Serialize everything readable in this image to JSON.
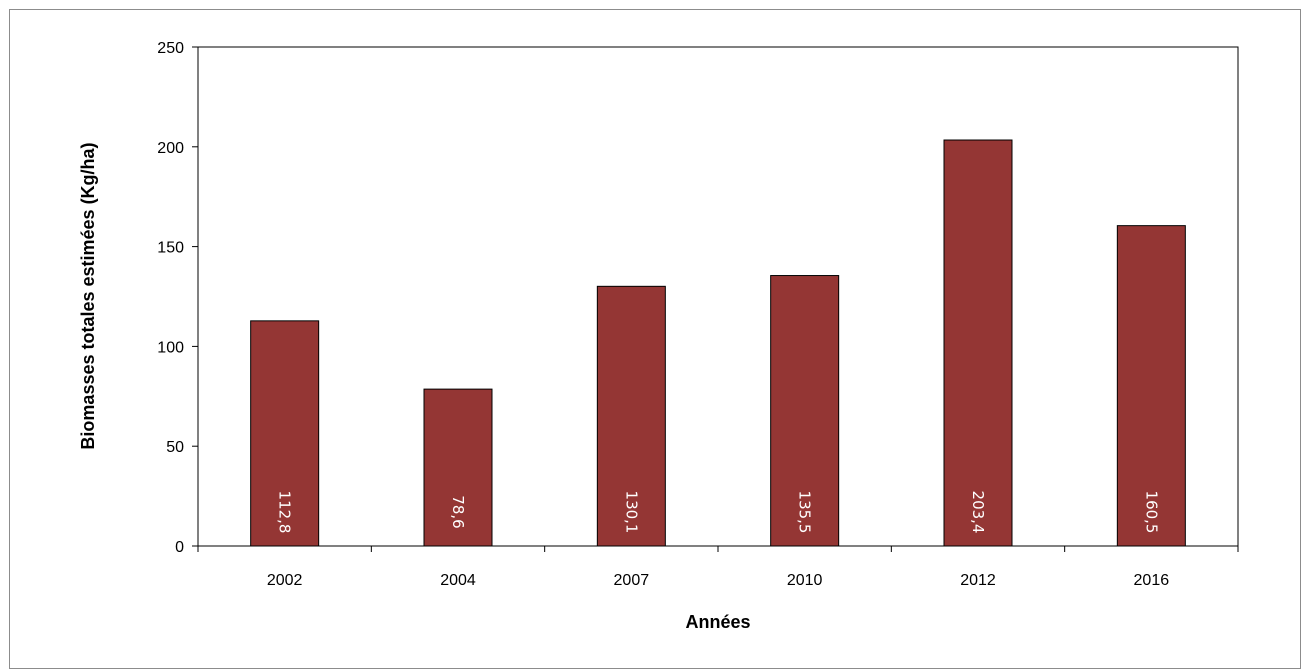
{
  "chart_data": {
    "type": "bar",
    "categories": [
      "2002",
      "2004",
      "2007",
      "2010",
      "2012",
      "2016"
    ],
    "values": [
      112.8,
      78.6,
      130.1,
      135.5,
      203.4,
      160.5
    ],
    "data_labels": [
      "112,8",
      "78,6",
      "130,1",
      "135,5",
      "203,4",
      "160,5"
    ],
    "xlabel": "Années",
    "ylabel": "Biomasses totales estimées (Kg/ha)",
    "ylim": [
      0,
      250
    ],
    "yticks": [
      0,
      50,
      100,
      150,
      200,
      250
    ],
    "bar_color": "#943634",
    "grid": false,
    "legend": "none"
  }
}
